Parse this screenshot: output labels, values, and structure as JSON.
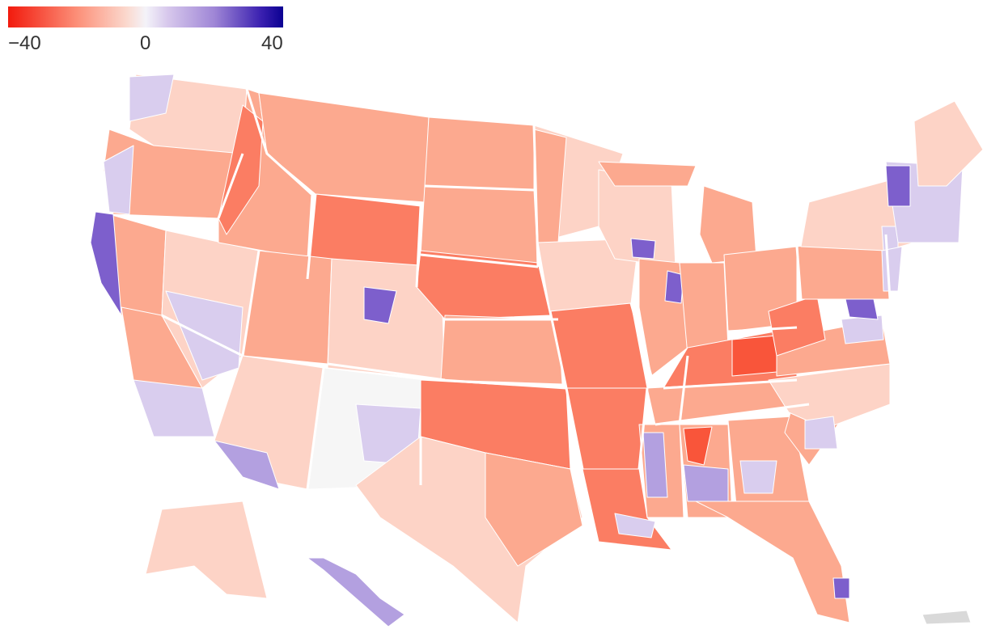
{
  "legend": {
    "min_label": "−40",
    "mid_label": "0",
    "max_label": "40",
    "colors": [
      "#f21a0d",
      "#fc8f78",
      "#fbd8cd",
      "#f4f3f9",
      "#d7c8ec",
      "#9f86d6",
      "#0b0092"
    ]
  },
  "map": {
    "type": "choropleth",
    "palette": {
      "strong_red": "#f9553a",
      "red": "#fb7d63",
      "salmon": "#fca98f",
      "light_salmon": "#fdd3c6",
      "neutral": "#f6f6f6",
      "light_purple": "#d9cdee",
      "purple": "#b3a0e0",
      "strong_purple": "#7d5fcc",
      "deep_blue": "#2a138f",
      "no_data": "#d9d9d9"
    }
  }
}
